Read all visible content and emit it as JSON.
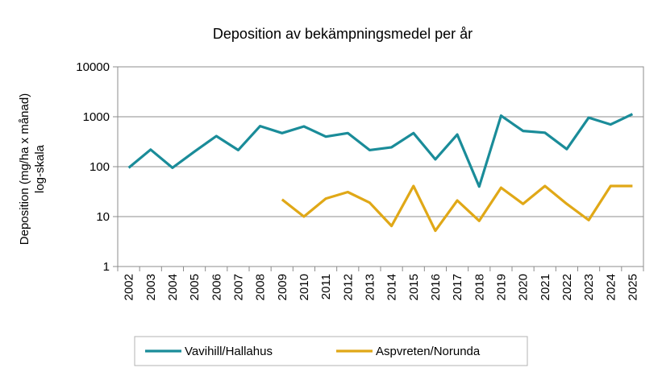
{
  "chart_data": {
    "type": "line",
    "title": "Deposition av bekämpningsmedel  per år",
    "ylabel_line1": "Deposition (mg/ha x månad)",
    "ylabel_line2": "log-skala",
    "xlabel": "",
    "yscale": "log",
    "ylim": [
      1,
      10000
    ],
    "y_ticks": [
      "1",
      "10",
      "100",
      "1000",
      "10000"
    ],
    "grid": true,
    "legend_position": "bottom",
    "categories": [
      "2002",
      "2003",
      "2004",
      "2005",
      "2006",
      "2007",
      "2008",
      "2009",
      "2010",
      "2011",
      "2012",
      "2013",
      "2014",
      "2015",
      "2016",
      "2017",
      "2018",
      "2019",
      "2020",
      "2021",
      "2022",
      "2023",
      "2024",
      "2025"
    ],
    "series": [
      {
        "name": "Vavihill/Hallahus",
        "color": "#1a8c99",
        "values": [
          95,
          220,
          95,
          200,
          410,
          215,
          650,
          470,
          640,
          400,
          470,
          215,
          245,
          470,
          140,
          440,
          40,
          1050,
          520,
          480,
          225,
          960,
          700,
          1130
        ]
      },
      {
        "name": "Aspvreten/Norunda",
        "color": "#e0a817",
        "values": [
          null,
          null,
          null,
          null,
          null,
          null,
          null,
          22,
          10,
          23,
          31,
          19,
          6.5,
          41,
          5.2,
          21,
          8.2,
          38,
          18,
          41,
          18,
          8.5,
          41,
          41
        ]
      }
    ]
  }
}
